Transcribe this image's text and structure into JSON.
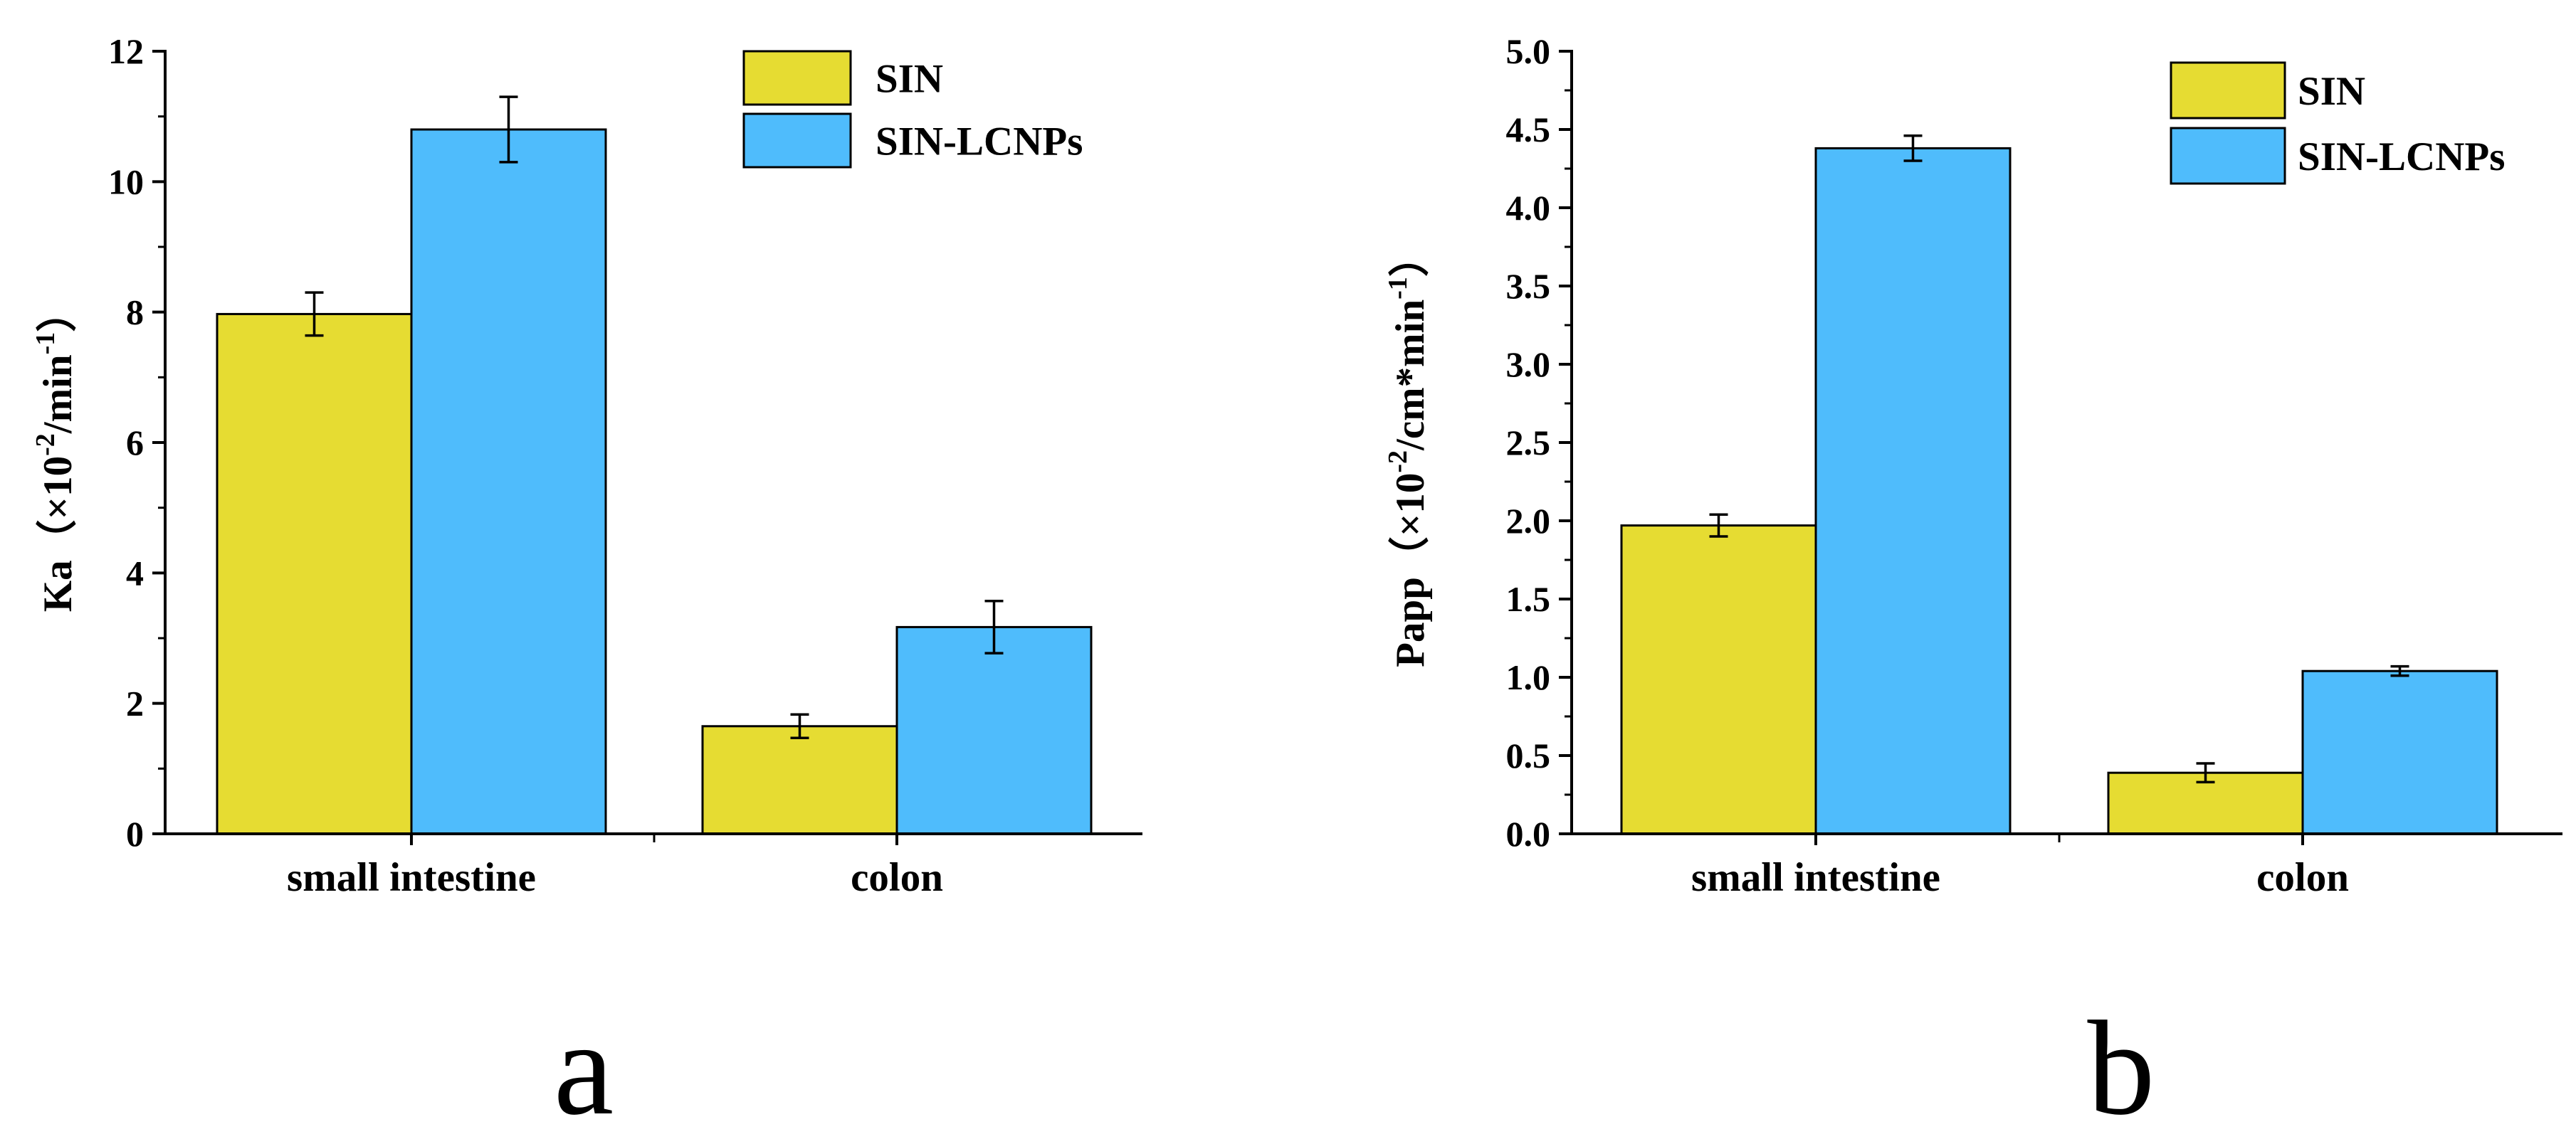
{
  "chart_data": [
    {
      "type": "bar",
      "panel_label": "a",
      "title": "",
      "categories": [
        "small intestine",
        "colon"
      ],
      "series": [
        {
          "name": "SIN",
          "color": "#E6DC32",
          "values": [
            7.97,
            1.65
          ],
          "errors": [
            0.33,
            0.18
          ]
        },
        {
          "name": "SIN-LCNPs",
          "color": "#4FBCFC",
          "values": [
            10.8,
            3.17
          ],
          "errors": [
            0.5,
            0.4
          ]
        }
      ],
      "ylabel_main": "Ka（×10",
      "ylabel_sup1": "-2",
      "ylabel_mid": "/min",
      "ylabel_sup2": "-1",
      "ylabel_end": "）",
      "ylim": [
        0,
        12
      ],
      "yticks": [
        "0",
        "2",
        "4",
        "6",
        "8",
        "10",
        "12"
      ],
      "legend_position": "top-right"
    },
    {
      "type": "bar",
      "panel_label": "b",
      "title": "",
      "categories": [
        "small intestine",
        "colon"
      ],
      "series": [
        {
          "name": "SIN",
          "color": "#E6DC32",
          "values": [
            1.97,
            0.39
          ],
          "errors": [
            0.07,
            0.06
          ]
        },
        {
          "name": "SIN-LCNPs",
          "color": "#4FBCFC",
          "values": [
            4.38,
            1.04
          ],
          "errors": [
            0.08,
            0.03
          ]
        }
      ],
      "ylabel_main": "Papp（×10",
      "ylabel_sup1": "-2",
      "ylabel_mid": "/cm*min",
      "ylabel_sup2": "-1",
      "ylabel_end": "）",
      "ylim": [
        0,
        5
      ],
      "yticks": [
        "0.0",
        "0.5",
        "1.0",
        "1.5",
        "2.0",
        "2.5",
        "3.0",
        "3.5",
        "4.0",
        "4.5",
        "5.0"
      ],
      "legend_position": "top-right"
    }
  ]
}
